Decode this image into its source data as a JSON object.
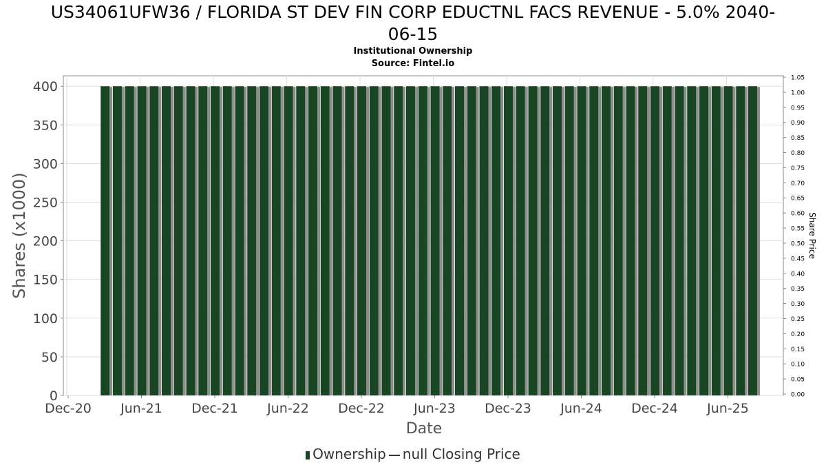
{
  "header": {
    "title_line1": "US34061UFW36 / FLORIDA ST DEV FIN CORP EDUCTNL FACS REVENUE - 5.0% 2040-",
    "title_line2": "06-15",
    "subtitle1": "Institutional Ownership",
    "subtitle2": "Source: Fintel.io"
  },
  "legend": {
    "ownership_label": "Ownership",
    "price_label": "null Closing Price"
  },
  "colors": {
    "bar": "#1a4525",
    "bar_shadow": "#8a8f8a",
    "grid": "#dddddd",
    "axis": "#888888"
  },
  "chart_data": {
    "type": "bar",
    "title": "US34061UFW36 / FLORIDA ST DEV FIN CORP EDUCTNL FACS REVENUE - 5.0% 2040-06-15",
    "subtitle": "Institutional Ownership",
    "xlabel": "Date",
    "ylabel": "Shares (x1000)",
    "y2label": "Share Price",
    "ylim": [
      0,
      410
    ],
    "y2lim": [
      0,
      1.05
    ],
    "yticks": [
      0,
      50,
      100,
      150,
      200,
      250,
      300,
      350,
      400
    ],
    "y2ticks": [
      "0.00",
      "0.05",
      "0.10",
      "0.15",
      "0.20",
      "0.25",
      "0.30",
      "0.35",
      "0.40",
      "0.45",
      "0.50",
      "0.55",
      "0.60",
      "0.65",
      "0.70",
      "0.75",
      "0.80",
      "0.85",
      "0.90",
      "0.95",
      "1.00",
      "1.05"
    ],
    "xticks": [
      "Dec-20",
      "Jun-21",
      "Dec-21",
      "Jun-22",
      "Dec-22",
      "Jun-23",
      "Dec-23",
      "Jun-24",
      "Dec-24",
      "Jun-25"
    ],
    "grid": true,
    "legend_position": "bottom",
    "series": [
      {
        "name": "Ownership",
        "x": [
          "2021-03",
          "2021-04",
          "2021-05",
          "2021-06",
          "2021-07",
          "2021-08",
          "2021-09",
          "2021-10",
          "2021-11",
          "2021-12",
          "2022-01",
          "2022-02",
          "2022-03",
          "2022-04",
          "2022-05",
          "2022-06",
          "2022-07",
          "2022-08",
          "2022-09",
          "2022-10",
          "2022-11",
          "2022-12",
          "2023-01",
          "2023-02",
          "2023-03",
          "2023-04",
          "2023-05",
          "2023-06",
          "2023-07",
          "2023-08",
          "2023-09",
          "2023-10",
          "2023-11",
          "2023-12",
          "2024-01",
          "2024-02",
          "2024-03",
          "2024-04",
          "2024-05",
          "2024-06",
          "2024-07",
          "2024-08",
          "2024-09",
          "2024-10",
          "2024-11",
          "2024-12",
          "2025-01",
          "2025-02",
          "2025-03",
          "2025-04",
          "2025-05",
          "2025-06",
          "2025-07",
          "2025-08"
        ],
        "values": [
          400,
          400,
          400,
          400,
          400,
          400,
          400,
          400,
          400,
          400,
          400,
          400,
          400,
          400,
          400,
          400,
          400,
          400,
          400,
          400,
          400,
          400,
          400,
          400,
          400,
          400,
          400,
          400,
          400,
          400,
          400,
          400,
          400,
          400,
          400,
          400,
          400,
          400,
          400,
          400,
          400,
          400,
          400,
          400,
          400,
          400,
          400,
          400,
          400,
          400,
          400,
          400,
          400,
          400
        ]
      },
      {
        "name": "null Closing Price",
        "values": []
      }
    ]
  }
}
